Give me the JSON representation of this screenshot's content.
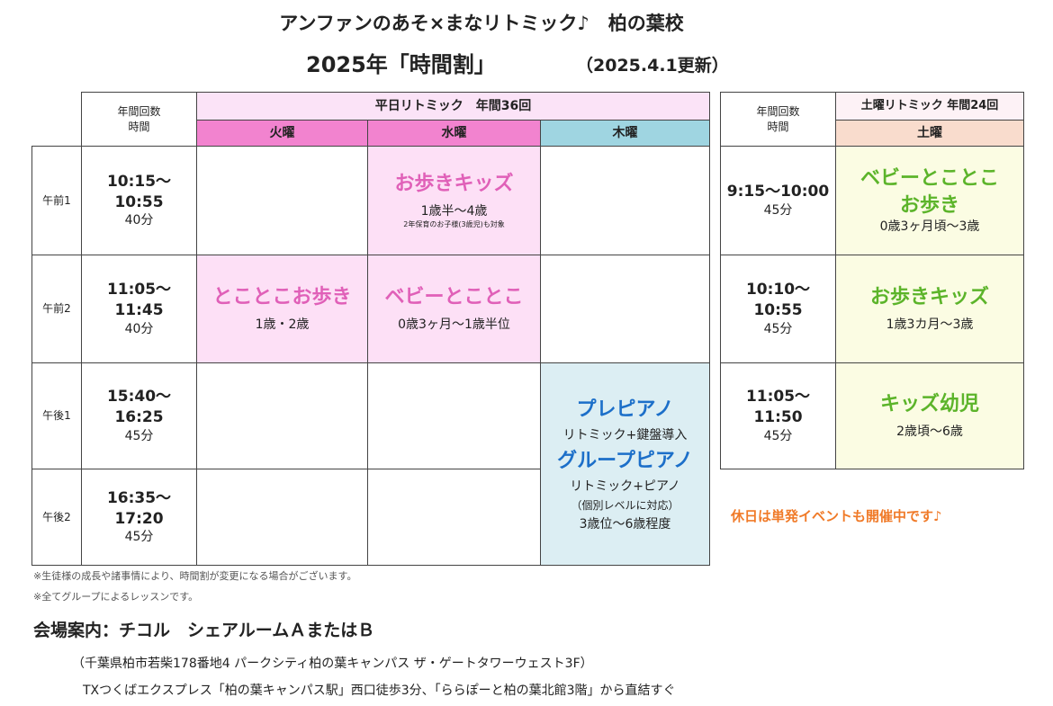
{
  "header": {
    "title": "アンファンのあそ×まなリトミック♪　柏の葉校",
    "subtitle": "2025年「時間割」",
    "updated": "（2025.4.1更新）"
  },
  "weekday": {
    "corner": [
      "年間回数",
      "時間"
    ],
    "banner": "平日リトミック　年間36回",
    "days": [
      "火曜",
      "水曜",
      "木曜"
    ],
    "rows": [
      {
        "label": "午前1",
        "time": [
          "10:15～",
          "10:55"
        ],
        "dur": "40分"
      },
      {
        "label": "午前2",
        "time": [
          "11:05～",
          "11:45"
        ],
        "dur": "40分"
      },
      {
        "label": "午後1",
        "time": [
          "15:40～",
          "16:25"
        ],
        "dur": "45分"
      },
      {
        "label": "午後2",
        "time": [
          "16:35～",
          "17:20"
        ],
        "dur": "45分"
      }
    ],
    "classes": {
      "wed1": {
        "name": "お歩きキッズ",
        "age": "1歳半～4歳",
        "note": "2年保育のお子様(3歳児)も対象"
      },
      "tue2": {
        "name": "とことこお歩き",
        "age": "1歳・2歳"
      },
      "wed2": {
        "name": "ベビーとことこ",
        "age": "0歳3ヶ月～1歳半位"
      },
      "thu": {
        "name1": "プレピアノ",
        "desc1": "リトミック+鍵盤導入",
        "name2": "グループピアノ",
        "desc2": "リトミック+ピアノ",
        "note": "（個別レベルに対応）",
        "age": "3歳位～6歳程度"
      }
    }
  },
  "saturday": {
    "corner": [
      "年間回数",
      "時間"
    ],
    "banner": "土曜リトミック 年間24回",
    "day": "土曜",
    "rows": [
      {
        "time": "9:15～10:00",
        "dur": "45分",
        "name": "ベビーとことこ",
        "name2": "お歩き",
        "age": "0歳3ヶ月頃～3歳"
      },
      {
        "time": [
          "10:10～",
          "10:55"
        ],
        "dur": "45分",
        "name": "お歩きキッズ",
        "age": "1歳3カ月～3歳"
      },
      {
        "time": [
          "11:05～",
          "11:50"
        ],
        "dur": "45分",
        "name": "キッズ幼児",
        "age": "2歳頃～6歳"
      }
    ],
    "holiday_note": "休日は単発イベントも開催中です♪"
  },
  "notes": [
    "※生徒様の成長や諸事情により、時間割が変更になる場合がございます。",
    "※全てグループによるレッスンです。"
  ],
  "venue": {
    "title": "会場案内：チコル　シェアルームＡまたはＢ",
    "address": "（千葉県柏市若柴178番地4 パークシティ柏の葉キャンパス ザ・ゲートタワーウェスト3F）",
    "access": "TXつくばエクスプレス「柏の葉キャンパス駅」西口徒歩3分、「ららぽーと柏の葉北館3階」から直結すぐ"
  },
  "colors": {
    "pink_text": "#e060b8",
    "blue_text": "#1c6fc9",
    "green_text": "#5cb42a",
    "orange_text": "#f07a28"
  }
}
